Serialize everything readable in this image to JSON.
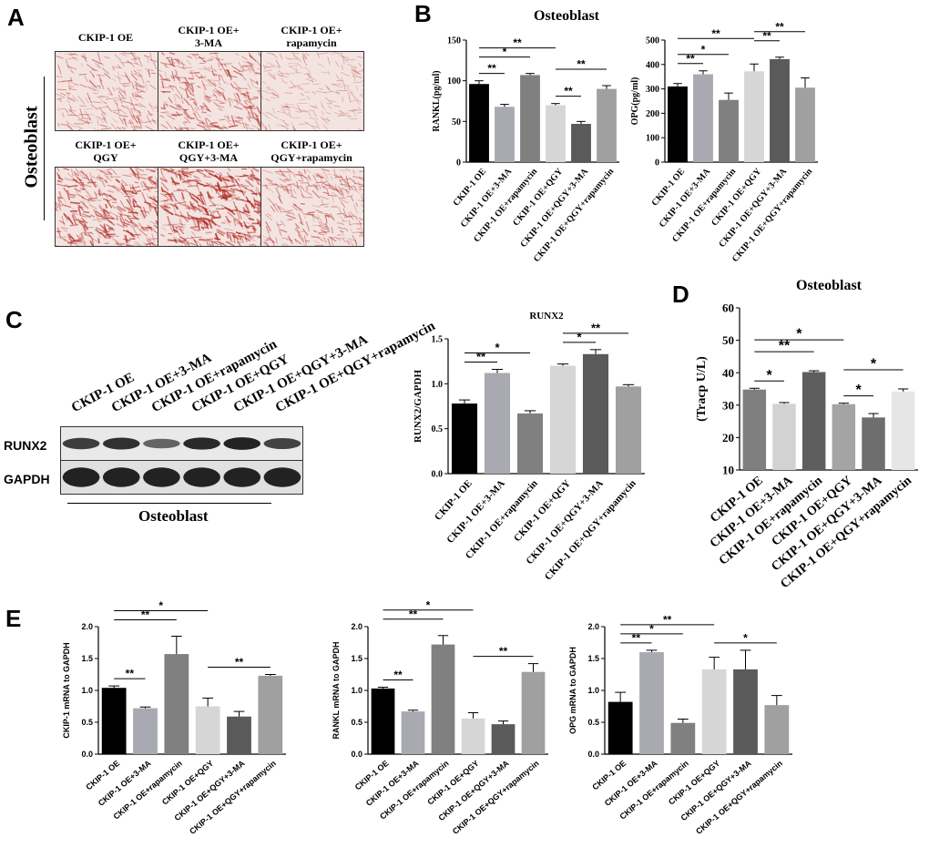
{
  "panels": {
    "A": "A",
    "B": "B",
    "C": "C",
    "D": "D",
    "E": "E"
  },
  "panelA": {
    "row_label": "Osteoblast",
    "top_labels": [
      "CKIP-1 OE",
      "CKIP-1 OE+\n3-MA",
      "CKIP-1 OE+\nrapamycin"
    ],
    "bottom_labels": [
      "CKIP-1 OE+\nQGY",
      "CKIP-1 OE+\nQGY+3-MA",
      "CKIP-1 OE+\nQGY+rapamycin"
    ],
    "stain_intensity": [
      0.45,
      0.65,
      0.25,
      0.85,
      1.0,
      0.55
    ],
    "stain_color": "#b0251f"
  },
  "panelC_blot": {
    "lanes": [
      "CKIP-1 OE",
      "CKIP-1 OE+3-MA",
      "CKIP-1 OE+rapamycin",
      "CKIP-1 OE+QGY",
      "CKIP-1 OE+QGY+3-MA",
      "CKIP-1 OE+QGY+rapamycin"
    ],
    "rows": [
      "RUNX2",
      "GAPDH"
    ],
    "caption": "Osteoblast",
    "runx2_intensity": [
      0.75,
      0.85,
      0.45,
      0.9,
      0.95,
      0.7
    ],
    "gapdh_intensity": [
      0.95,
      0.95,
      0.95,
      0.95,
      0.95,
      0.95
    ]
  },
  "chart_data": [
    {
      "id": "B1",
      "type": "bar",
      "group_title": "Osteoblast",
      "categories": [
        "CKIP-1 OE",
        "CKIP-1 OE+3-MA",
        "CKIP-1 OE+rapamycin",
        "CKIP-1 OE+QGY",
        "CKIP-1 OE+QGY+3-MA",
        "CKIP-1 OE+QGY+rapamycin"
      ],
      "values": [
        96,
        68,
        107,
        70,
        47,
        90
      ],
      "errors": [
        4,
        3,
        2,
        2,
        3,
        4
      ],
      "ylabel": "RANKL(pg/ml)",
      "ylim": [
        0,
        150
      ],
      "yticks": [
        0,
        50,
        100,
        150
      ],
      "colors": [
        "#000000",
        "#a9a9b1",
        "#808080",
        "#d6d6d6",
        "#5a5a5a",
        "#a0a0a0"
      ],
      "sig": [
        {
          "from": 0,
          "to": 1,
          "label": "**",
          "level": 0
        },
        {
          "from": 0,
          "to": 2,
          "label": "*",
          "level": 1
        },
        {
          "from": 0,
          "to": 3,
          "label": "**",
          "level": 2
        },
        {
          "from": 3,
          "to": 4,
          "label": "**",
          "level": 0
        },
        {
          "from": 3,
          "to": 5,
          "label": "**",
          "level": 1
        }
      ]
    },
    {
      "id": "B2",
      "type": "bar",
      "categories": [
        "CKIP-1 OE",
        "CKIP-1 OE+3-MA",
        "CKIP-1 OE+rapamycin",
        "CKIP-1 OE+QGY",
        "CKIP-1 OE+QGY+3-MA",
        "CKIP-1 OE+QGY+rapamycin"
      ],
      "values": [
        310,
        360,
        255,
        372,
        422,
        305
      ],
      "errors": [
        12,
        14,
        28,
        30,
        8,
        40
      ],
      "ylabel": "OPG(pg/ml)",
      "ylim": [
        0,
        500
      ],
      "yticks": [
        0,
        100,
        200,
        300,
        400,
        500
      ],
      "colors": [
        "#000000",
        "#a9a9b1",
        "#808080",
        "#d6d6d6",
        "#5a5a5a",
        "#a0a0a0"
      ],
      "sig": [
        {
          "from": 0,
          "to": 1,
          "label": "**",
          "level": 0
        },
        {
          "from": 0,
          "to": 2,
          "label": "*",
          "level": 1
        },
        {
          "from": 0,
          "to": 3,
          "label": "**",
          "level": 2
        },
        {
          "from": 3,
          "to": 4,
          "label": "**",
          "level": 1
        },
        {
          "from": 3,
          "to": 5,
          "label": "**",
          "level": 2
        }
      ]
    },
    {
      "id": "C",
      "type": "bar",
      "title": "RUNX2",
      "categories": [
        "CKIP-1 OE",
        "CKIP-1 OE+3-MA",
        "CKIP-1 OE+rapamycin",
        "CKIP-1 OE+QGY",
        "CKIP-1 OE+QGY+3-MA",
        "CKIP-1 OE+QGY+rapamycin"
      ],
      "values": [
        0.78,
        1.12,
        0.67,
        1.2,
        1.33,
        0.97
      ],
      "errors": [
        0.04,
        0.04,
        0.03,
        0.02,
        0.05,
        0.02
      ],
      "ylabel": "RUNX2/GAPDH",
      "ylim": [
        0,
        1.5
      ],
      "yticks": [
        0.0,
        0.5,
        1.0,
        1.5
      ],
      "colors": [
        "#000000",
        "#a9a9b1",
        "#808080",
        "#d6d6d6",
        "#5a5a5a",
        "#a0a0a0"
      ],
      "sig": [
        {
          "from": 0,
          "to": 1,
          "label": "**",
          "level": 0
        },
        {
          "from": 0,
          "to": 2,
          "label": "*",
          "level": 1
        },
        {
          "from": 3,
          "to": 4,
          "label": "*",
          "level": 0
        },
        {
          "from": 3,
          "to": 5,
          "label": "**",
          "level": 1
        }
      ]
    },
    {
      "id": "D",
      "type": "bar",
      "group_title": "Osteoblast",
      "categories": [
        "CKIP-1 OE",
        "CKIP-1 OE+3-MA",
        "CKIP-1 OE+rapamycin",
        "CKIP-1 OE+QGY",
        "CKIP-1 OE+QGY+3-MA",
        "CKIP-1 OE+QGY+rapamycin"
      ],
      "values": [
        34.8,
        30.4,
        40.2,
        30.3,
        26.2,
        34.2
      ],
      "errors": [
        0.4,
        0.4,
        0.4,
        0.3,
        1.2,
        0.8
      ],
      "ylabel": "(Tracp U/L)",
      "ylim": [
        10,
        60
      ],
      "yticks": [
        10,
        20,
        30,
        40,
        50,
        60
      ],
      "colors": [
        "#7f7f7f",
        "#d2d2d2",
        "#5e5e5e",
        "#a4a4a4",
        "#6e6e6e",
        "#e6e6e6"
      ],
      "sig": [
        {
          "from": 0,
          "to": 1,
          "label": "*",
          "level": 0
        },
        {
          "from": 0,
          "to": 2,
          "label": "**",
          "level": 1
        },
        {
          "from": 0,
          "to": 3,
          "label": "*",
          "level": 2
        },
        {
          "from": 3,
          "to": 4,
          "label": "*",
          "level": 0
        },
        {
          "from": 3,
          "to": 5,
          "label": "*",
          "level": 1
        }
      ]
    },
    {
      "id": "E1",
      "type": "bar",
      "categories": [
        "CKIP-1 OE",
        "CKIP-1 OE+3-MA",
        "CKIP-1 OE+rapamycin",
        "CKIP-1 OE+QGY",
        "CKIP-1 OE+QGY+3-MA",
        "CKIP-1 OE+QGY+rapamycin"
      ],
      "values": [
        1.04,
        0.72,
        1.57,
        0.75,
        0.59,
        1.23
      ],
      "errors": [
        0.03,
        0.02,
        0.28,
        0.13,
        0.08,
        0.02
      ],
      "ylabel": "CKIP-1 mRNA to GAPDH",
      "ylim": [
        0,
        2.0
      ],
      "yticks": [
        0.0,
        0.5,
        1.0,
        1.5,
        2.0
      ],
      "colors": [
        "#000000",
        "#a9a9b1",
        "#808080",
        "#d6d6d6",
        "#5a5a5a",
        "#a0a0a0"
      ],
      "sig": [
        {
          "from": 0,
          "to": 1,
          "label": "**",
          "level": 0
        },
        {
          "from": 0,
          "to": 2,
          "label": "**",
          "level": 1
        },
        {
          "from": 0,
          "to": 3,
          "label": "*",
          "level": 2
        },
        {
          "from": 3,
          "to": 5,
          "label": "**",
          "level": 0
        }
      ]
    },
    {
      "id": "E2",
      "type": "bar",
      "categories": [
        "CKIP-1 OE",
        "CKIP-1 OE+3-MA",
        "CKIP-1 OE+rapamycin",
        "CKIP-1 OE+QGY",
        "CKIP-1 OE+QGY+3-MA",
        "CKIP-1 OE+QGY+rapamycin"
      ],
      "values": [
        1.03,
        0.67,
        1.72,
        0.56,
        0.47,
        1.29
      ],
      "errors": [
        0.02,
        0.02,
        0.14,
        0.09,
        0.05,
        0.13
      ],
      "ylabel": "RANKL mRNA to GAPDH",
      "ylim": [
        0,
        2.0
      ],
      "yticks": [
        0.0,
        0.5,
        1.0,
        1.5,
        2.0
      ],
      "colors": [
        "#000000",
        "#a9a9b1",
        "#808080",
        "#d6d6d6",
        "#5a5a5a",
        "#a0a0a0"
      ],
      "sig": [
        {
          "from": 0,
          "to": 1,
          "label": "**",
          "level": 0
        },
        {
          "from": 0,
          "to": 2,
          "label": "**",
          "level": 1
        },
        {
          "from": 0,
          "to": 3,
          "label": "*",
          "level": 2
        },
        {
          "from": 3,
          "to": 5,
          "label": "**",
          "level": 0
        }
      ]
    },
    {
      "id": "E3",
      "type": "bar",
      "categories": [
        "CKIP-1 OE",
        "CKIP-1 OE+3-MA",
        "CKIP-1 OE+rapamycin",
        "CKIP-1 OE+QGY",
        "CKIP-1 OE+QGY+3-MA",
        "CKIP-1 OE+QGY+rapamycin"
      ],
      "values": [
        0.82,
        1.6,
        0.49,
        1.33,
        1.33,
        0.77
      ],
      "errors": [
        0.15,
        0.03,
        0.06,
        0.19,
        0.3,
        0.15
      ],
      "ylabel": "OPG mRNA to GAPDH",
      "ylim": [
        0,
        2.0
      ],
      "yticks": [
        0.0,
        0.5,
        1.0,
        1.5,
        2.0
      ],
      "colors": [
        "#000000",
        "#a9a9b1",
        "#808080",
        "#d6d6d6",
        "#5a5a5a",
        "#a0a0a0"
      ],
      "sig": [
        {
          "from": 0,
          "to": 1,
          "label": "**",
          "level": 0
        },
        {
          "from": 0,
          "to": 2,
          "label": "*",
          "level": 1
        },
        {
          "from": 0,
          "to": 3,
          "label": "**",
          "level": 2
        },
        {
          "from": 3,
          "to": 5,
          "label": "*",
          "level": 0
        }
      ]
    }
  ]
}
